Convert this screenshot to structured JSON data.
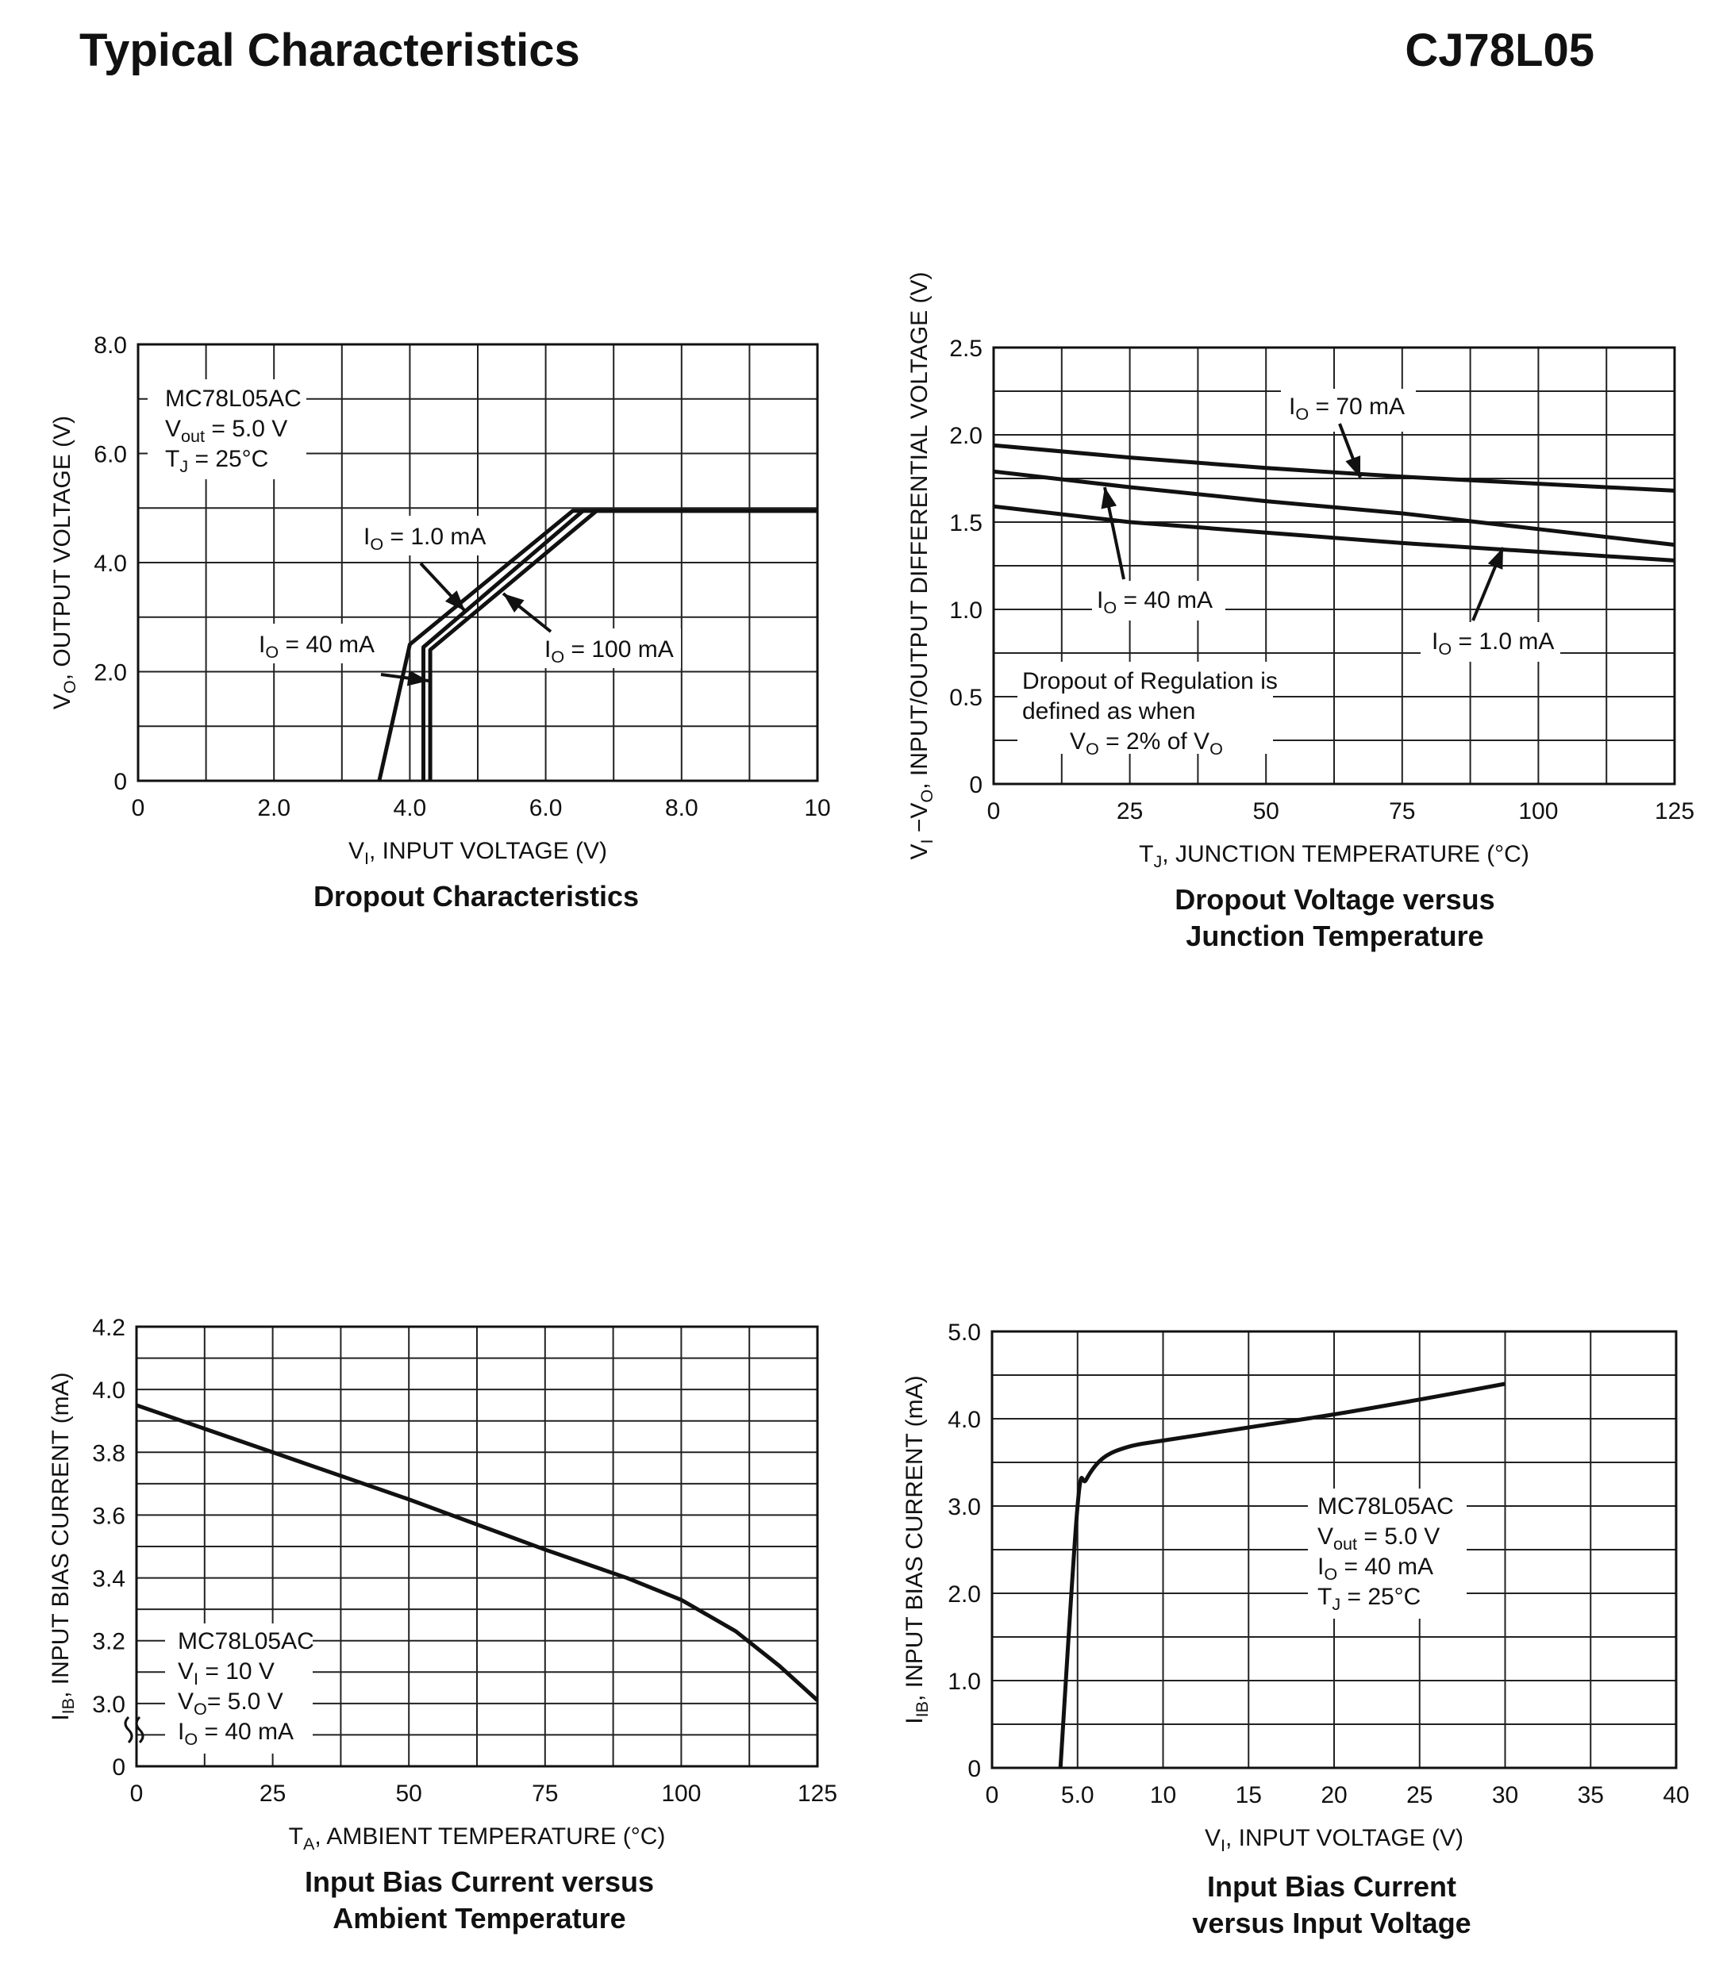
{
  "header": {
    "title": "Typical Characteristics",
    "part_number": "CJ78L05"
  },
  "chart_data": [
    {
      "id": "dropout",
      "type": "line",
      "title": "Dropout Characteristics",
      "xlabel": "V_I, INPUT VOLTAGE (V)",
      "ylabel": "V_O, OUTPUT VOLTAGE (V)",
      "xlim": [
        0,
        10
      ],
      "ylim": [
        0,
        8
      ],
      "x_ticks": [
        "0",
        "2.0",
        "4.0",
        "6.0",
        "8.0",
        "10"
      ],
      "y_ticks": [
        "0",
        "2.0",
        "4.0",
        "6.0",
        "8.0"
      ],
      "grid": true,
      "conditions": [
        "MC78L05AC",
        "V_out = 5.0 V",
        "T_J = 25°C"
      ],
      "series": [
        {
          "name": "I_O = 1.0 mA",
          "x": [
            3.55,
            4.0,
            6.4,
            10
          ],
          "y": [
            0,
            2.5,
            4.95,
            4.95
          ]
        },
        {
          "name": "I_O = 40 mA",
          "x": [
            4.2,
            4.2,
            6.55,
            10
          ],
          "y": [
            0,
            2.45,
            4.95,
            4.95
          ]
        },
        {
          "name": "I_O = 100 mA",
          "x": [
            4.3,
            4.3,
            6.75,
            10
          ],
          "y": [
            0,
            2.4,
            4.95,
            4.95
          ]
        }
      ],
      "labels": {
        "io1": "I_O = 1.0 mA",
        "io40": "I_O = 40 mA",
        "io100": "I_O = 100 mA"
      }
    },
    {
      "id": "dropout_vs_tj",
      "type": "line",
      "title": "Dropout Voltage versus Junction Temperature",
      "title_lines": [
        "Dropout Voltage versus",
        "Junction Temperature"
      ],
      "xlabel": "T_J, JUNCTION TEMPERATURE (°C)",
      "ylabel": "V_I −V_O, INPUT/OUTPUT DIFFERENTIAL VOLTAGE (V)",
      "xlim": [
        0,
        125
      ],
      "ylim": [
        0,
        2.5
      ],
      "x_ticks": [
        "0",
        "25",
        "50",
        "75",
        "100",
        "125"
      ],
      "y_ticks": [
        "0",
        "0.5",
        "1.0",
        "1.5",
        "2.0",
        "2.5"
      ],
      "grid": true,
      "note": [
        "Dropout of Regulation is",
        "defined as when",
        "V_O = 2% of V_O"
      ],
      "series": [
        {
          "name": "I_O = 70 mA",
          "x": [
            0,
            25,
            50,
            75,
            100,
            125
          ],
          "y": [
            1.94,
            1.87,
            1.81,
            1.76,
            1.72,
            1.68
          ]
        },
        {
          "name": "I_O = 40 mA",
          "x": [
            0,
            25,
            50,
            75,
            100,
            125
          ],
          "y": [
            1.79,
            1.7,
            1.62,
            1.55,
            1.46,
            1.37
          ]
        },
        {
          "name": "I_O = 1.0 mA",
          "x": [
            0,
            25,
            50,
            75,
            100,
            125
          ],
          "y": [
            1.59,
            1.5,
            1.44,
            1.38,
            1.33,
            1.28
          ]
        }
      ],
      "labels": {
        "io70": "I_O = 70 mA",
        "io40": "I_O = 40 mA",
        "io1": "I_O = 1.0 mA"
      }
    },
    {
      "id": "ib_vs_ta",
      "type": "line",
      "title": "Input Bias Current versus Ambient Temperature",
      "title_lines": [
        "Input Bias Current versus",
        "Ambient Temperature"
      ],
      "xlabel": "T_A, AMBIENT TEMPERATURE (°C)",
      "ylabel": "I_IB, INPUT BIAS CURRENT (mA)",
      "xlim": [
        0,
        125
      ],
      "ylim": [
        2.8,
        4.2
      ],
      "axis_break": true,
      "x_ticks": [
        "0",
        "25",
        "50",
        "75",
        "100",
        "125"
      ],
      "y_ticks": [
        "3.0",
        "3.2",
        "3.4",
        "3.6",
        "3.8",
        "4.0",
        "4.2"
      ],
      "y_zero_label": "0",
      "grid": true,
      "conditions": [
        "MC78L05AC",
        "V_I = 10 V",
        "V_O= 5.0 V",
        "I_O = 40 mA"
      ],
      "series": [
        {
          "name": "",
          "x": [
            0,
            25,
            50,
            75,
            90,
            100,
            110,
            118,
            125
          ],
          "y": [
            3.95,
            3.8,
            3.65,
            3.49,
            3.4,
            3.33,
            3.23,
            3.12,
            3.01
          ]
        }
      ]
    },
    {
      "id": "ib_vs_vi",
      "type": "line",
      "title": "Input Bias Current versus Input Voltage",
      "title_lines": [
        "Input Bias Current",
        "versus Input Voltage"
      ],
      "xlabel": "V_I, INPUT VOLTAGE (V)",
      "ylabel": "I_IB, INPUT BIAS CURRENT (mA)",
      "xlim": [
        0,
        40
      ],
      "ylim": [
        0,
        5.0
      ],
      "x_ticks": [
        "0",
        "5.0",
        "10",
        "15",
        "20",
        "25",
        "30",
        "35",
        "40"
      ],
      "y_ticks": [
        "0",
        "1.0",
        "2.0",
        "3.0",
        "4.0",
        "5.0"
      ],
      "grid": true,
      "conditions": [
        "MC78L05AC",
        "V_out = 5.0 V",
        "I_O = 40 mA",
        "T_J = 25°C"
      ],
      "series": [
        {
          "name": "",
          "x": [
            4.0,
            5.0,
            5.5,
            6.5,
            8.0,
            10,
            15,
            20,
            25,
            30
          ],
          "y": [
            0,
            3.0,
            3.3,
            3.55,
            3.68,
            3.75,
            3.9,
            4.05,
            4.22,
            4.4
          ]
        }
      ]
    }
  ]
}
